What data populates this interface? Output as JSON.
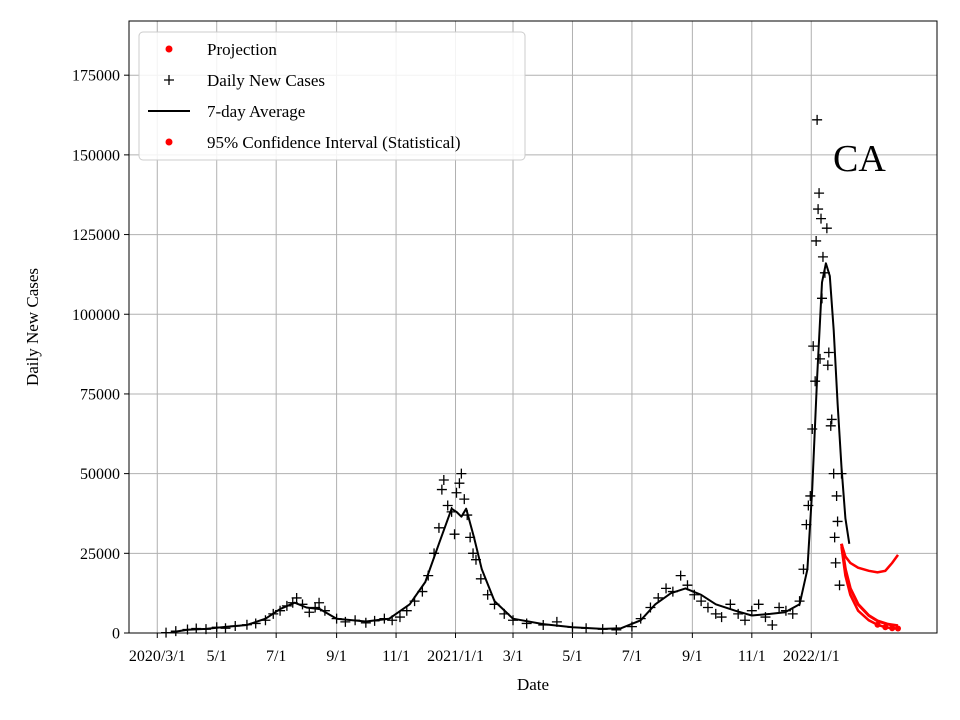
{
  "chart_data": {
    "type": "line",
    "region_label": "CA",
    "xlabel": "Date",
    "ylabel": "Daily New Cases",
    "xlim": [
      "2020-02-01",
      "2022-05-10"
    ],
    "ylim": [
      0,
      192000
    ],
    "x_ticks": [
      {
        "date": "2020-03-01",
        "label": "2020/3/1"
      },
      {
        "date": "2020-05-01",
        "label": "5/1"
      },
      {
        "date": "2020-07-01",
        "label": "7/1"
      },
      {
        "date": "2020-09-01",
        "label": "9/1"
      },
      {
        "date": "2020-11-01",
        "label": "11/1"
      },
      {
        "date": "2021-01-01",
        "label": "2021/1/1"
      },
      {
        "date": "2021-03-01",
        "label": "3/1"
      },
      {
        "date": "2021-05-01",
        "label": "5/1"
      },
      {
        "date": "2021-07-01",
        "label": "7/1"
      },
      {
        "date": "2021-09-01",
        "label": "9/1"
      },
      {
        "date": "2021-11-01",
        "label": "11/1"
      },
      {
        "date": "2022-01-01",
        "label": "2022/1/1"
      }
    ],
    "y_ticks": [
      0,
      25000,
      50000,
      75000,
      100000,
      125000,
      150000,
      175000
    ],
    "y_tick_labels": [
      "0",
      "25000",
      "50000",
      "75000",
      "100000",
      "125000",
      "150000",
      "175000"
    ],
    "grid": true,
    "legend_position": "top-left",
    "legend": [
      {
        "label": "Projection",
        "marker": "dot",
        "color": "#ff0000"
      },
      {
        "label": "Daily New Cases",
        "marker": "plus",
        "color": "#000000"
      },
      {
        "label": "7-day Average",
        "marker": "line",
        "color": "#000000"
      },
      {
        "label": "95% Confidence Interval (Statistical)",
        "marker": "dot",
        "color": "#ff0000"
      }
    ],
    "series": [
      {
        "name": "7-day Average",
        "style": "line",
        "color": "#000000",
        "points": [
          [
            "2020-03-15",
            200
          ],
          [
            "2020-04-01",
            1000
          ],
          [
            "2020-04-20",
            1300
          ],
          [
            "2020-05-10",
            1900
          ],
          [
            "2020-06-01",
            2500
          ],
          [
            "2020-06-20",
            4500
          ],
          [
            "2020-07-05",
            7500
          ],
          [
            "2020-07-20",
            9500
          ],
          [
            "2020-08-01",
            8000
          ],
          [
            "2020-08-15",
            7500
          ],
          [
            "2020-09-01",
            4500
          ],
          [
            "2020-10-01",
            3600
          ],
          [
            "2020-10-25",
            4500
          ],
          [
            "2020-11-15",
            9000
          ],
          [
            "2020-12-01",
            16000
          ],
          [
            "2020-12-15",
            28000
          ],
          [
            "2020-12-28",
            39000
          ],
          [
            "2021-01-02",
            38000
          ],
          [
            "2021-01-07",
            36500
          ],
          [
            "2021-01-12",
            39000
          ],
          [
            "2021-01-20",
            30000
          ],
          [
            "2021-01-28",
            20000
          ],
          [
            "2021-02-10",
            10000
          ],
          [
            "2021-03-01",
            4500
          ],
          [
            "2021-04-01",
            2800
          ],
          [
            "2021-05-01",
            1800
          ],
          [
            "2021-06-01",
            1300
          ],
          [
            "2021-06-20",
            1500
          ],
          [
            "2021-07-10",
            4000
          ],
          [
            "2021-07-25",
            9000
          ],
          [
            "2021-08-10",
            12500
          ],
          [
            "2021-08-25",
            14000
          ],
          [
            "2021-09-10",
            12000
          ],
          [
            "2021-09-25",
            9000
          ],
          [
            "2021-10-15",
            7000
          ],
          [
            "2021-11-01",
            5500
          ],
          [
            "2021-11-20",
            6000
          ],
          [
            "2021-12-05",
            6500
          ],
          [
            "2021-12-20",
            9000
          ],
          [
            "2021-12-28",
            20000
          ],
          [
            "2022-01-02",
            45000
          ],
          [
            "2022-01-07",
            80000
          ],
          [
            "2022-01-12",
            110000
          ],
          [
            "2022-01-16",
            116000
          ],
          [
            "2022-01-20",
            112000
          ],
          [
            "2022-01-24",
            95000
          ],
          [
            "2022-01-28",
            72000
          ],
          [
            "2022-02-01",
            52000
          ],
          [
            "2022-02-05",
            36000
          ],
          [
            "2022-02-09",
            28000
          ]
        ]
      },
      {
        "name": "Daily New Cases",
        "style": "plus",
        "color": "#000000",
        "points": [
          [
            "2020-03-10",
            100
          ],
          [
            "2020-03-20",
            600
          ],
          [
            "2020-04-01",
            1100
          ],
          [
            "2020-04-10",
            1400
          ],
          [
            "2020-04-20",
            1200
          ],
          [
            "2020-05-01",
            1800
          ],
          [
            "2020-05-10",
            1500
          ],
          [
            "2020-05-20",
            2200
          ],
          [
            "2020-06-01",
            2600
          ],
          [
            "2020-06-10",
            3000
          ],
          [
            "2020-06-20",
            4000
          ],
          [
            "2020-06-28",
            6000
          ],
          [
            "2020-07-05",
            7000
          ],
          [
            "2020-07-12",
            8500
          ],
          [
            "2020-07-18",
            9500
          ],
          [
            "2020-07-22",
            11000
          ],
          [
            "2020-07-28",
            9000
          ],
          [
            "2020-08-04",
            6500
          ],
          [
            "2020-08-10",
            8000
          ],
          [
            "2020-08-14",
            9500
          ],
          [
            "2020-08-20",
            7000
          ],
          [
            "2020-09-01",
            4500
          ],
          [
            "2020-09-10",
            3500
          ],
          [
            "2020-09-20",
            4000
          ],
          [
            "2020-10-01",
            3200
          ],
          [
            "2020-10-10",
            3800
          ],
          [
            "2020-10-20",
            4500
          ],
          [
            "2020-10-28",
            4000
          ],
          [
            "2020-11-05",
            5000
          ],
          [
            "2020-11-12",
            7000
          ],
          [
            "2020-11-20",
            10000
          ],
          [
            "2020-11-28",
            13000
          ],
          [
            "2020-12-04",
            18000
          ],
          [
            "2020-12-10",
            25000
          ],
          [
            "2020-12-15",
            33000
          ],
          [
            "2020-12-18",
            45000
          ],
          [
            "2020-12-20",
            48000
          ],
          [
            "2020-12-24",
            40000
          ],
          [
            "2020-12-28",
            38000
          ],
          [
            "2020-12-31",
            31000
          ],
          [
            "2021-01-02",
            44000
          ],
          [
            "2021-01-05",
            47000
          ],
          [
            "2021-01-07",
            50000
          ],
          [
            "2021-01-10",
            42000
          ],
          [
            "2021-01-13",
            37000
          ],
          [
            "2021-01-16",
            30000
          ],
          [
            "2021-01-19",
            25000
          ],
          [
            "2021-01-22",
            23000
          ],
          [
            "2021-01-27",
            17000
          ],
          [
            "2021-02-03",
            12000
          ],
          [
            "2021-02-10",
            9000
          ],
          [
            "2021-02-20",
            6000
          ],
          [
            "2021-03-01",
            4000
          ],
          [
            "2021-03-15",
            3000
          ],
          [
            "2021-04-01",
            2500
          ],
          [
            "2021-04-15",
            3500
          ],
          [
            "2021-05-01",
            1800
          ],
          [
            "2021-05-15",
            1500
          ],
          [
            "2021-06-01",
            1200
          ],
          [
            "2021-06-15",
            1000
          ],
          [
            "2021-07-01",
            2000
          ],
          [
            "2021-07-10",
            4500
          ],
          [
            "2021-07-20",
            8000
          ],
          [
            "2021-07-28",
            11000
          ],
          [
            "2021-08-05",
            14000
          ],
          [
            "2021-08-12",
            13000
          ],
          [
            "2021-08-20",
            18000
          ],
          [
            "2021-08-27",
            15000
          ],
          [
            "2021-09-03",
            12000
          ],
          [
            "2021-09-10",
            10000
          ],
          [
            "2021-09-17",
            8000
          ],
          [
            "2021-09-25",
            6000
          ],
          [
            "2021-10-01",
            5000
          ],
          [
            "2021-10-10",
            9000
          ],
          [
            "2021-10-18",
            6000
          ],
          [
            "2021-10-25",
            4000
          ],
          [
            "2021-11-01",
            7000
          ],
          [
            "2021-11-08",
            9000
          ],
          [
            "2021-11-15",
            5000
          ],
          [
            "2021-11-22",
            2500
          ],
          [
            "2021-11-29",
            8000
          ],
          [
            "2021-12-06",
            7000
          ],
          [
            "2021-12-13",
            6000
          ],
          [
            "2021-12-20",
            10000
          ],
          [
            "2021-12-24",
            20000
          ],
          [
            "2021-12-27",
            34000
          ],
          [
            "2021-12-29",
            40000
          ],
          [
            "2021-12-31",
            43000
          ],
          [
            "2022-01-02",
            64000
          ],
          [
            "2022-01-03",
            90000
          ],
          [
            "2022-01-05",
            79000
          ],
          [
            "2022-01-06",
            123000
          ],
          [
            "2022-01-07",
            161000
          ],
          [
            "2022-01-08",
            133000
          ],
          [
            "2022-01-09",
            138000
          ],
          [
            "2022-01-10",
            86000
          ],
          [
            "2022-01-11",
            130000
          ],
          [
            "2022-01-12",
            105000
          ],
          [
            "2022-01-13",
            118000
          ],
          [
            "2022-01-15",
            113000
          ],
          [
            "2022-01-17",
            127000
          ],
          [
            "2022-01-18",
            84000
          ],
          [
            "2022-01-19",
            88000
          ],
          [
            "2022-01-21",
            65000
          ],
          [
            "2022-01-22",
            67000
          ],
          [
            "2022-01-24",
            50000
          ],
          [
            "2022-01-25",
            30000
          ],
          [
            "2022-01-26",
            22000
          ],
          [
            "2022-01-27",
            43000
          ],
          [
            "2022-01-28",
            35000
          ],
          [
            "2022-01-30",
            15000
          ],
          [
            "2022-02-01",
            50000
          ]
        ]
      },
      {
        "name": "95% Confidence Interval (Statistical)",
        "style": "band",
        "color": "#ff0000",
        "upper": [
          [
            "2022-02-01",
            28000
          ],
          [
            "2022-02-05",
            24000
          ],
          [
            "2022-02-10",
            22000
          ],
          [
            "2022-02-18",
            20500
          ],
          [
            "2022-03-01",
            19500
          ],
          [
            "2022-03-10",
            19000
          ],
          [
            "2022-03-18",
            19500
          ],
          [
            "2022-03-25",
            22000
          ],
          [
            "2022-03-31",
            24500
          ]
        ],
        "lower": [
          [
            "2022-02-01",
            27000
          ],
          [
            "2022-02-05",
            18000
          ],
          [
            "2022-02-10",
            12000
          ],
          [
            "2022-02-18",
            7000
          ],
          [
            "2022-03-01",
            4000
          ],
          [
            "2022-03-10",
            2600
          ],
          [
            "2022-03-18",
            1800
          ],
          [
            "2022-03-25",
            1500
          ],
          [
            "2022-03-31",
            1400
          ]
        ]
      },
      {
        "name": "Projection",
        "style": "line",
        "color": "#ff0000",
        "points": [
          [
            "2022-02-01",
            28000
          ],
          [
            "2022-02-05",
            20000
          ],
          [
            "2022-02-10",
            14000
          ],
          [
            "2022-02-18",
            9000
          ],
          [
            "2022-03-01",
            5500
          ],
          [
            "2022-03-10",
            3800
          ],
          [
            "2022-03-20",
            2800
          ],
          [
            "2022-03-31",
            2300
          ]
        ]
      }
    ]
  }
}
